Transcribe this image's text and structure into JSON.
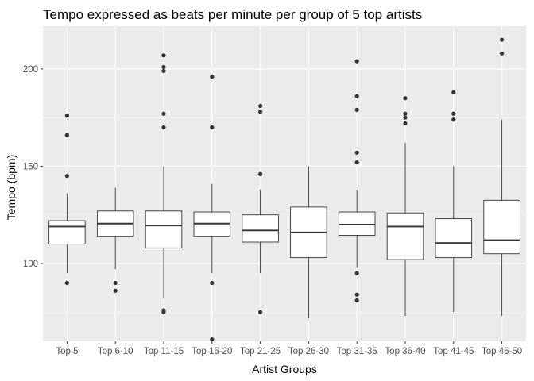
{
  "chart_data": {
    "type": "boxplot",
    "title": "Tempo expressed as beats per minute per group of 5 top artists",
    "xlabel": "Artist Groups",
    "ylabel": "Tempo (bpm)",
    "ylim": [
      60,
      222
    ],
    "yticks": [
      100,
      150,
      200
    ],
    "grid": true,
    "colors": {
      "panel": "#ebebeb",
      "grid_major": "#ffffff",
      "box_fill": "#ffffff",
      "box_line": "#333333",
      "point": "#333333",
      "tick_text": "#4d4d4d"
    },
    "categories": [
      "Top 5",
      "Top 6-10",
      "Top 11-15",
      "Top 16-20",
      "Top 21-25",
      "Top 26-30",
      "Top 31-35",
      "Top 36-40",
      "Top 41-45",
      "Top 46-50"
    ],
    "boxes": [
      {
        "whisker_low": 95,
        "q1": 110,
        "median": 119,
        "q3": 122,
        "whisker_high": 136,
        "outliers": [
          176,
          166,
          145,
          90
        ]
      },
      {
        "whisker_low": 97,
        "q1": 114,
        "median": 120.5,
        "q3": 127,
        "whisker_high": 139,
        "outliers": [
          90,
          86
        ]
      },
      {
        "whisker_low": 82,
        "q1": 108,
        "median": 119.5,
        "q3": 127,
        "whisker_high": 150,
        "outliers": [
          207,
          201,
          199,
          177,
          170,
          76,
          75
        ]
      },
      {
        "whisker_low": 95,
        "q1": 114,
        "median": 120.5,
        "q3": 126.5,
        "whisker_high": 141,
        "outliers": [
          196,
          170,
          90,
          61
        ]
      },
      {
        "whisker_low": 95,
        "q1": 111,
        "median": 117,
        "q3": 125,
        "whisker_high": 138,
        "outliers": [
          181,
          178,
          146,
          75
        ]
      },
      {
        "whisker_low": 72,
        "q1": 103,
        "median": 116,
        "q3": 129,
        "whisker_high": 150,
        "outliers": []
      },
      {
        "whisker_low": 98,
        "q1": 114.5,
        "median": 120,
        "q3": 126.5,
        "whisker_high": 138,
        "outliers": [
          204,
          186,
          179,
          157,
          152,
          95,
          84,
          81
        ]
      },
      {
        "whisker_low": 73,
        "q1": 102,
        "median": 119,
        "q3": 126,
        "whisker_high": 162,
        "outliers": [
          185,
          177,
          175,
          172
        ]
      },
      {
        "whisker_low": 75,
        "q1": 103,
        "median": 110.5,
        "q3": 123,
        "whisker_high": 150,
        "outliers": [
          188,
          177,
          174
        ]
      },
      {
        "whisker_low": 73,
        "q1": 105,
        "median": 112,
        "q3": 132.5,
        "whisker_high": 174,
        "outliers": [
          215,
          208
        ]
      }
    ]
  }
}
